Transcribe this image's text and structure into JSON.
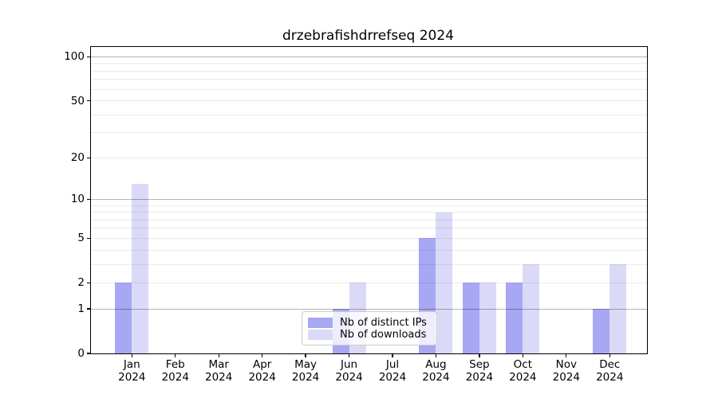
{
  "chart_data": {
    "type": "bar",
    "title": "drzebrafishdrrefseq 2024",
    "categories": [
      "Jan",
      "Feb",
      "Mar",
      "Apr",
      "May",
      "Jun",
      "Jul",
      "Aug",
      "Sep",
      "Oct",
      "Nov",
      "Dec"
    ],
    "year_label": "2024",
    "series": [
      {
        "name": "Nb of distinct IPs",
        "color": "#a7a7f4",
        "values": [
          2,
          0,
          0,
          0,
          0,
          1,
          0,
          5,
          2,
          2,
          0,
          1
        ]
      },
      {
        "name": "Nb of downloads",
        "color": "#dadaf8",
        "values": [
          13,
          0,
          0,
          0,
          0,
          2,
          0,
          8,
          2,
          3,
          0,
          3
        ]
      }
    ],
    "yaxis": {
      "scale": "log1p",
      "tick_values": [
        0,
        1,
        2,
        5,
        10,
        20,
        50,
        100
      ],
      "tick_labels": [
        "0",
        "1",
        "2",
        "5",
        "10",
        "20",
        "50",
        "100"
      ],
      "major_gridlines": [
        1,
        10,
        100
      ],
      "minor_gridlines": [
        2,
        3,
        4,
        5,
        6,
        7,
        8,
        9,
        20,
        30,
        40,
        50,
        60,
        70,
        80,
        90
      ],
      "range": [
        0,
        116
      ]
    },
    "xlabel": "",
    "ylabel": "",
    "grid": true,
    "legend": {
      "position": "lower center"
    }
  },
  "colors": {
    "major_grid": "rgba(0,0,0,0.30)",
    "minor_grid": "rgba(0,0,0,0.08)",
    "axis": "#000000"
  }
}
